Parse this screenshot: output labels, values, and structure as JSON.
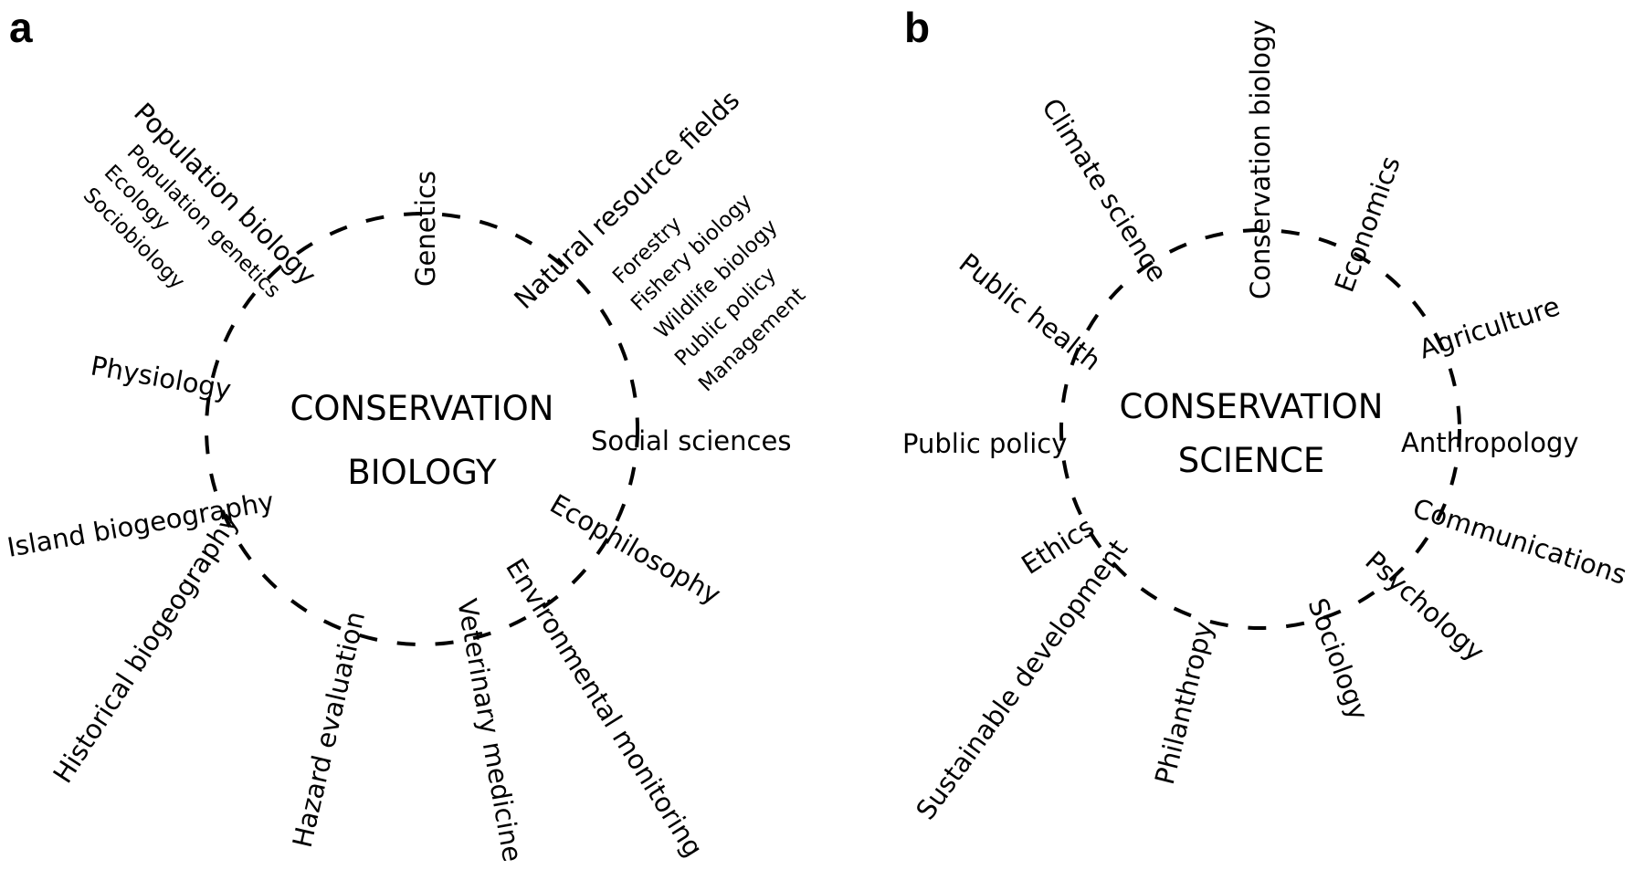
{
  "panel_a": {
    "letter": "a",
    "center_line1": "CONSERVATION",
    "center_line2": "BIOLOGY",
    "fields": {
      "population_biology": "Population biology",
      "population_genetics": "Population genetics",
      "ecology": "Ecology",
      "sociobiology": "Sociobiology",
      "genetics": "Genetics",
      "natural_resource_fields": "Natural resource fields",
      "forestry": "Forestry",
      "fishery_biology": "Fishery biology",
      "wildlife_biology": "Wildlife biology",
      "public_policy": "Public policy",
      "management": "Management",
      "physiology": "Physiology",
      "social_sciences": "Social sciences",
      "island_biogeography": "Island biogeography",
      "ecophilosophy": "Ecophilosophy",
      "historical_biogeography": "Historical biogeography",
      "hazard_evaluation": "Hazard evaluation",
      "veterinary_medicine": "Veterinary medicine",
      "environmental_monitoring": "Environmental monitoring"
    }
  },
  "panel_b": {
    "letter": "b",
    "center_line1": "CONSERVATION",
    "center_line2": "SCIENCE",
    "fields": {
      "climate_science": "Climate science",
      "conservation_biology": "Conservation biology",
      "economics": "Economics",
      "public_health": "Public health",
      "agriculture": "Agriculture",
      "public_policy": "Public policy",
      "anthropology": "Anthropology",
      "ethics": "Ethics",
      "communications": "Communications",
      "sustainable_development": "Sustainable development",
      "psychology": "Psychology",
      "philanthropy": "Philanthropy",
      "sociology": "Sociology"
    }
  }
}
